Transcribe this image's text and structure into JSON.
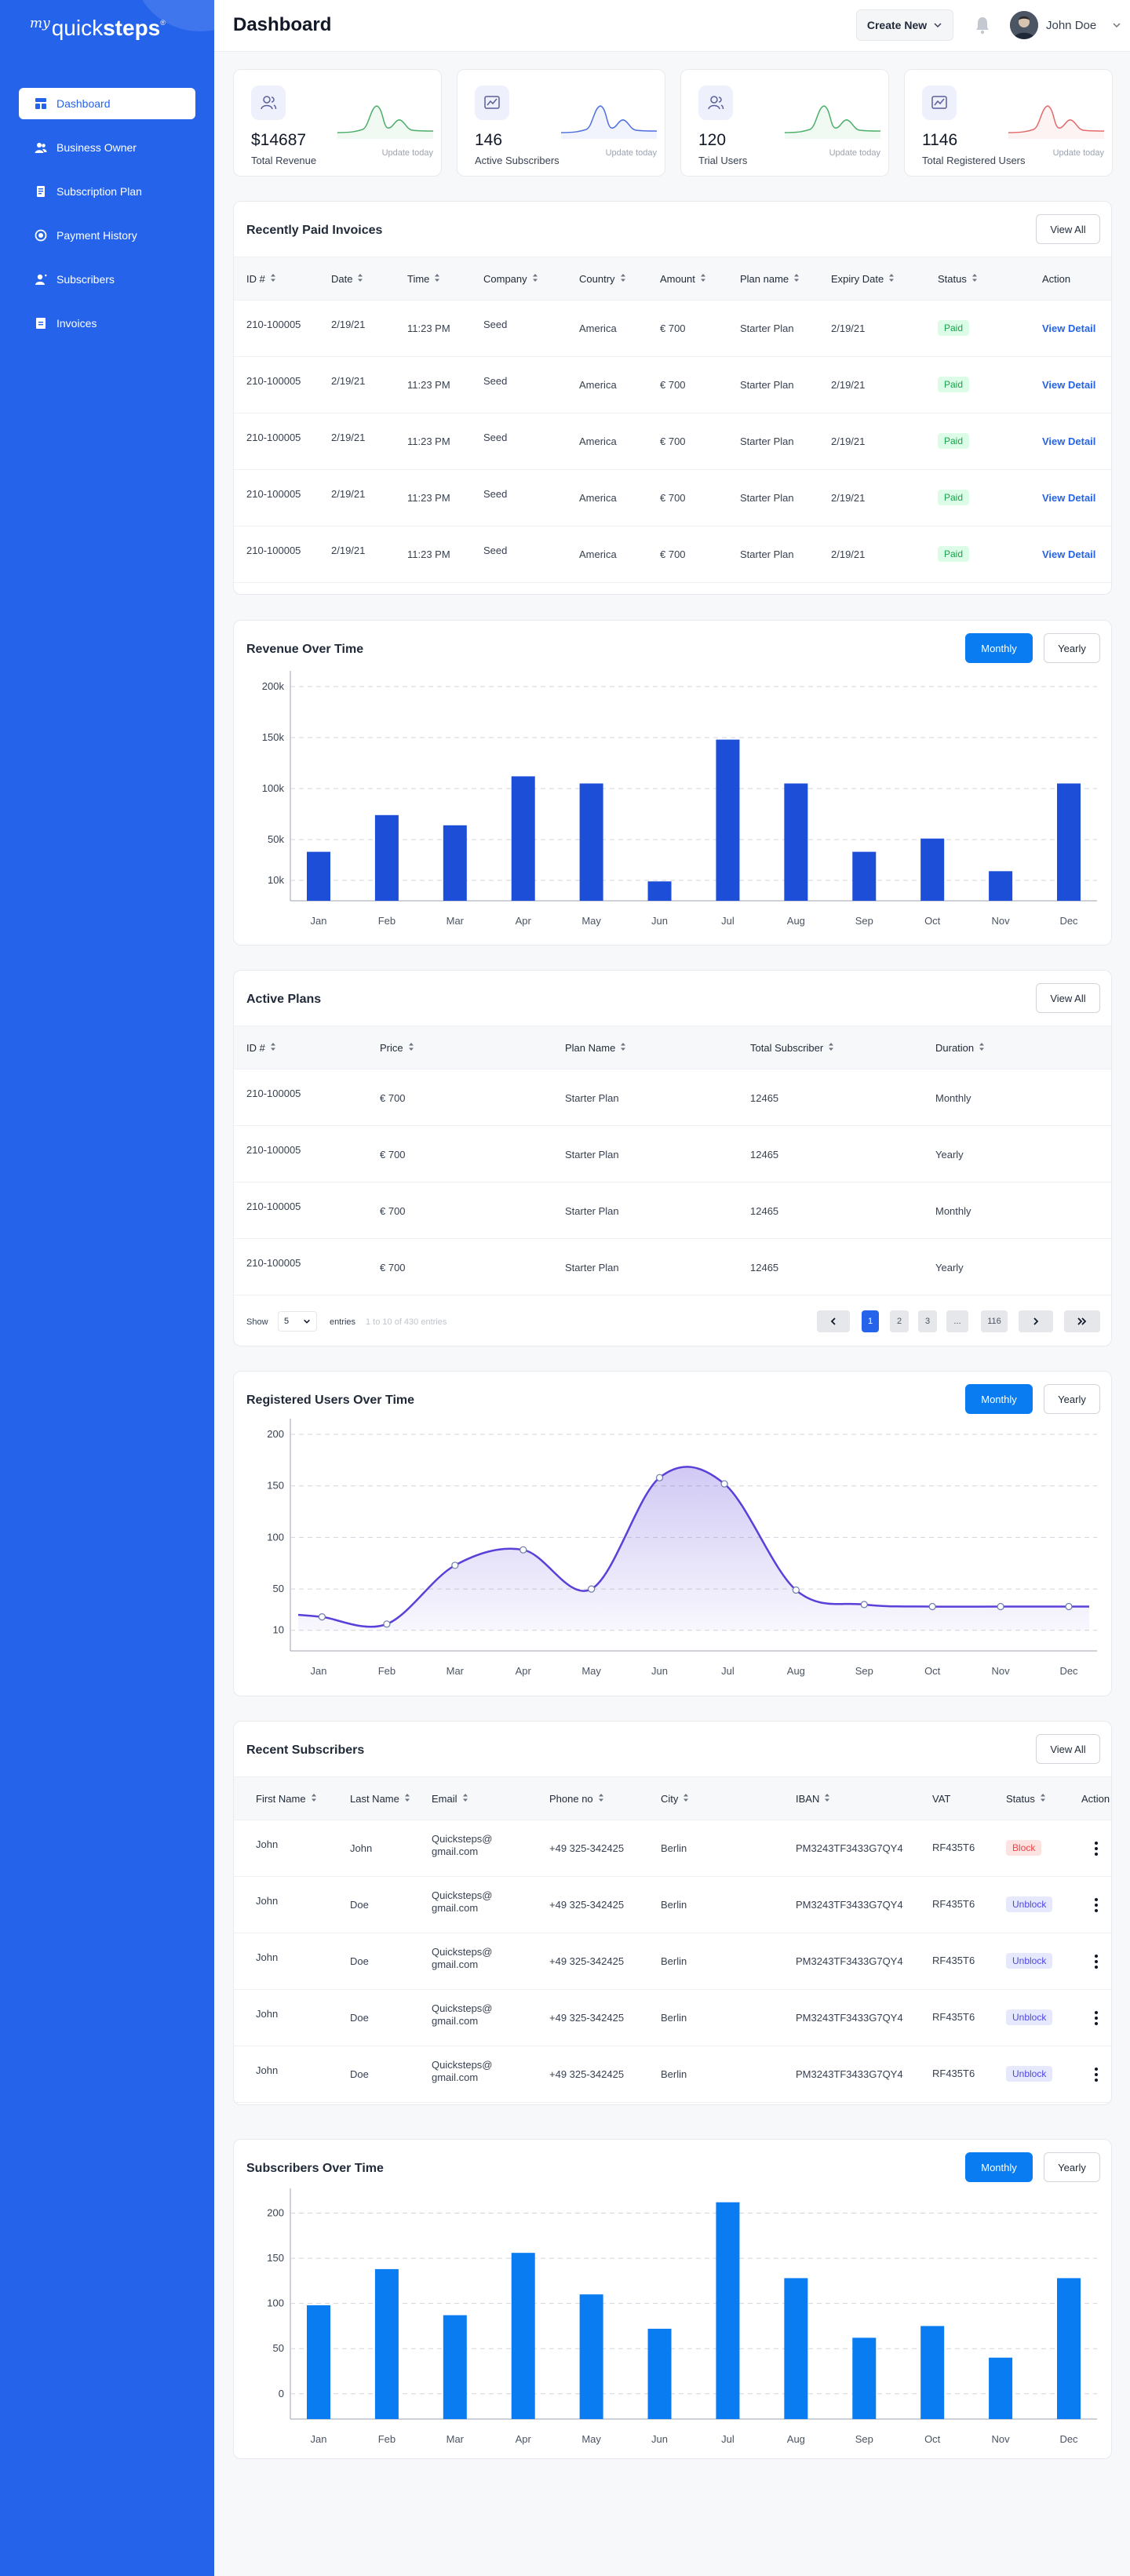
{
  "logo": {
    "prefix": "my",
    "name_light": "quick",
    "name_bold": "steps",
    "reg": "®"
  },
  "sidebar": {
    "items": [
      {
        "label": "Dashboard",
        "icon": "dashboard-icon",
        "active": true
      },
      {
        "label": "Business Owner",
        "icon": "users-icon"
      },
      {
        "label": "Subscription Plan",
        "icon": "document-icon"
      },
      {
        "label": "Payment History",
        "icon": "history-icon"
      },
      {
        "label": "Subscribers",
        "icon": "user-icon"
      },
      {
        "label": "Invoices",
        "icon": "invoice-icon"
      }
    ]
  },
  "header": {
    "title": "Dashboard",
    "create_label": "Create New",
    "user_name": "John Doe"
  },
  "stats": [
    {
      "value": "$14687",
      "label": "Total Revenue",
      "update": "Update today",
      "color": "#4caf6a"
    },
    {
      "value": "146",
      "label": "Active Subscribers",
      "update": "Update today",
      "color": "#4f6fe0"
    },
    {
      "value": "120",
      "label": "Trial Users",
      "update": "Update today",
      "color": "#4caf6a"
    },
    {
      "value": "1146",
      "label": "Total Registered Users",
      "update": "Update today",
      "color": "#e36b6b"
    }
  ],
  "invoices": {
    "title": "Recently Paid Invoices",
    "view_all": "View All",
    "columns": [
      "ID #",
      "Date",
      "Time",
      "Company",
      "Country",
      "Amount",
      "Plan name",
      "Expiry Date",
      "Status",
      "Action"
    ],
    "rows": [
      {
        "id": "210-100005",
        "date": "2/19/21",
        "time": "11:23 PM",
        "company": "Seed",
        "country": "America",
        "amount": "€  700",
        "plan": "Starter Plan",
        "expiry": "2/19/21",
        "status": "Paid",
        "action": "View Detail"
      },
      {
        "id": "210-100005",
        "date": "2/19/21",
        "time": "11:23 PM",
        "company": "Seed",
        "country": "America",
        "amount": "€  700",
        "plan": "Starter Plan",
        "expiry": "2/19/21",
        "status": "Paid",
        "action": "View Detail"
      },
      {
        "id": "210-100005",
        "date": "2/19/21",
        "time": "11:23 PM",
        "company": "Seed",
        "country": "America",
        "amount": "€  700",
        "plan": "Starter Plan",
        "expiry": "2/19/21",
        "status": "Paid",
        "action": "View Detail"
      },
      {
        "id": "210-100005",
        "date": "2/19/21",
        "time": "11:23 PM",
        "company": "Seed",
        "country": "America",
        "amount": "€  700",
        "plan": "Starter Plan",
        "expiry": "2/19/21",
        "status": "Paid",
        "action": "View Detail"
      },
      {
        "id": "210-100005",
        "date": "2/19/21",
        "time": "11:23 PM",
        "company": "Seed",
        "country": "America",
        "amount": "€  700",
        "plan": "Starter Plan",
        "expiry": "2/19/21",
        "status": "Paid",
        "action": "View Detail"
      }
    ]
  },
  "revenue_chart": {
    "title": "Revenue Over Time",
    "monthly": "Monthly",
    "yearly": "Yearly",
    "color": "#1d4ed8"
  },
  "plans": {
    "title": "Active Plans",
    "view_all": "View All",
    "columns": [
      "ID #",
      "Price",
      "Plan Name",
      "Total Subscriber",
      "Duration"
    ],
    "rows": [
      {
        "id": "210-100005",
        "price": "€  700",
        "plan": "Starter Plan",
        "total": "12465",
        "duration": "Monthly"
      },
      {
        "id": "210-100005",
        "price": "€  700",
        "plan": "Starter Plan",
        "total": "12465",
        "duration": "Yearly"
      },
      {
        "id": "210-100005",
        "price": "€  700",
        "plan": "Starter Plan",
        "total": "12465",
        "duration": "Monthly"
      },
      {
        "id": "210-100005",
        "price": "€  700",
        "plan": "Starter Plan",
        "total": "12465",
        "duration": "Yearly"
      }
    ],
    "show_label": "Show",
    "show_value": "5",
    "entries_label": "entries",
    "entries_info": "1 to 10 of 430 entries",
    "pages": [
      "1",
      "2",
      "3",
      "...",
      "116"
    ]
  },
  "registered_chart": {
    "title": "Registered Users Over Time",
    "monthly": "Monthly",
    "yearly": "Yearly",
    "color": "#5b3fd9"
  },
  "subscribers": {
    "title": "Recent Subscribers",
    "view_all": "View All",
    "columns": [
      "First Name",
      "Last Name",
      "Email",
      "Phone no",
      "City",
      "IBAN",
      "VAT",
      "Status",
      "Action"
    ],
    "rows": [
      {
        "first": "John",
        "last": "John",
        "email1": "Quicksteps@",
        "email2": "gmail.com",
        "phone": "+49 325-342425",
        "city": "Berlin",
        "iban": "PM3243TF3433G7QY4",
        "vat": "RF435T6",
        "status": "Block"
      },
      {
        "first": "John",
        "last": "Doe",
        "email1": "Quicksteps@",
        "email2": "gmail.com",
        "phone": "+49 325-342425",
        "city": "Berlin",
        "iban": "PM3243TF3433G7QY4",
        "vat": "RF435T6",
        "status": "Unblock"
      },
      {
        "first": "John",
        "last": "Doe",
        "email1": "Quicksteps@",
        "email2": "gmail.com",
        "phone": "+49 325-342425",
        "city": "Berlin",
        "iban": "PM3243TF3433G7QY4",
        "vat": "RF435T6",
        "status": "Unblock"
      },
      {
        "first": "John",
        "last": "Doe",
        "email1": "Quicksteps@",
        "email2": "gmail.com",
        "phone": "+49 325-342425",
        "city": "Berlin",
        "iban": "PM3243TF3433G7QY4",
        "vat": "RF435T6",
        "status": "Unblock"
      },
      {
        "first": "John",
        "last": "Doe",
        "email1": "Quicksteps@",
        "email2": "gmail.com",
        "phone": "+49 325-342425",
        "city": "Berlin",
        "iban": "PM3243TF3433G7QY4",
        "vat": "RF435T6",
        "status": "Unblock"
      }
    ]
  },
  "subscribers_chart": {
    "title": "Subscribers Over Time",
    "monthly": "Monthly",
    "yearly": "Yearly",
    "color": "#0a7cf2"
  },
  "chart_data": [
    {
      "type": "bar",
      "title": "Revenue Over Time",
      "categories": [
        "Jan",
        "Feb",
        "Mar",
        "Apr",
        "May",
        "Jun",
        "Jul",
        "Aug",
        "Sep",
        "Oct",
        "Nov",
        "Dec"
      ],
      "values": [
        38,
        74,
        64,
        112,
        105,
        9,
        148,
        105,
        38,
        51,
        19,
        105
      ],
      "y_ticks": [
        "200k",
        "150k",
        "100k",
        "50k",
        "10k"
      ],
      "ylim": [
        -10,
        200
      ],
      "unit": "k",
      "grid": true
    },
    {
      "type": "line",
      "title": "Registered Users Over Time",
      "categories": [
        "Jan",
        "Feb",
        "Mar",
        "Apr",
        "May",
        "Jun",
        "Jul",
        "Aug",
        "Sep",
        "Oct",
        "Nov",
        "Dec"
      ],
      "x": [
        0.05,
        1.0,
        2.0,
        3.0,
        4.0,
        5.0,
        5.95,
        7.0,
        8.0,
        9.0,
        10.0,
        11.0
      ],
      "values": [
        23,
        16,
        73,
        88,
        50,
        158,
        152,
        49,
        35,
        33,
        33,
        33
      ],
      "y_ticks": [
        "200",
        "150",
        "100",
        "50",
        "10"
      ],
      "ylim": [
        -10,
        200
      ],
      "area": true,
      "smooth": true,
      "grid": true
    },
    {
      "type": "bar",
      "title": "Subscribers Over Time",
      "categories": [
        "Jan",
        "Feb",
        "Mar",
        "Apr",
        "May",
        "Jun",
        "Jul",
        "Aug",
        "Sep",
        "Oct",
        "Nov",
        "Dec"
      ],
      "values": [
        98,
        138,
        87,
        156,
        110,
        72,
        212,
        128,
        62,
        75,
        40,
        128
      ],
      "y_ticks": [
        "200",
        "150",
        "100",
        "50",
        "0"
      ],
      "ylim": [
        -28,
        210
      ],
      "grid": true
    }
  ]
}
